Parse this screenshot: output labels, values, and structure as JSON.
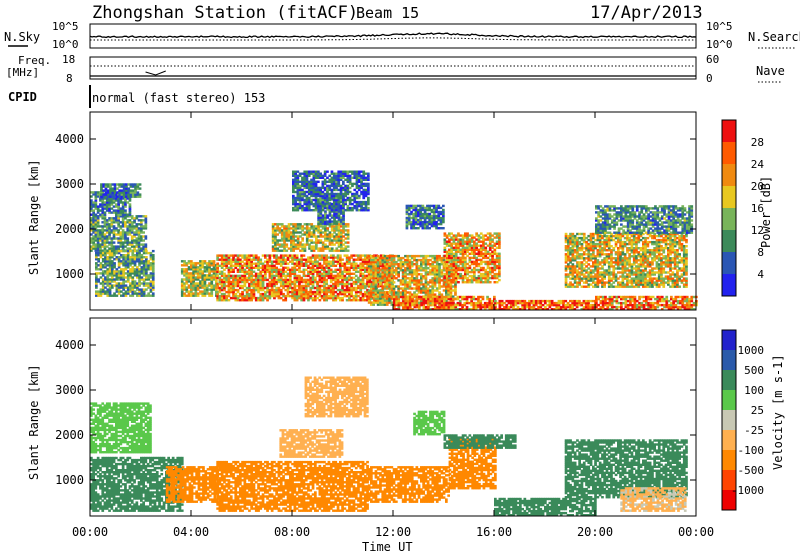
{
  "header": {
    "station": "Zhongshan Station (fitACF)",
    "beam": "Beam 15",
    "date": "17/Apr/2013"
  },
  "top_panels": {
    "nsky_label": "N.Sky",
    "nsky_ticks": [
      "10^5",
      "10^0"
    ],
    "nsearch_label": "N.Search",
    "nsearch_ticks": [
      "10^5",
      "10^0"
    ],
    "freq_label": "Freq.",
    "freq_unit": "[MHz]",
    "freq_ticks": [
      "18",
      "8"
    ],
    "nave_label": "Nave",
    "nave_ticks": [
      "60",
      "0"
    ],
    "cpid_label": "CPID",
    "cpid_value": "normal (fast stereo) 153"
  },
  "x_axis": {
    "label": "Time UT",
    "ticks": [
      "00:00",
      "04:00",
      "08:00",
      "12:00",
      "16:00",
      "20:00",
      "00:00"
    ]
  },
  "colors": {
    "power": [
      "#2222ee",
      "#2a56b4",
      "#3c8a5a",
      "#78b45a",
      "#e8c820",
      "#f08a10",
      "#ff5a00",
      "#ee1010"
    ],
    "velocity": [
      "#ee0000",
      "#ff4400",
      "#ff8800",
      "#ffb050",
      "#c8c8b4",
      "#5ac84a",
      "#3a8a5a",
      "#2a5aaa",
      "#2222cc"
    ]
  },
  "chart_data": [
    {
      "type": "heatmap",
      "name": "power",
      "ylabel": "Slant Range [km]",
      "yticks": [
        "1000",
        "2000",
        "3000",
        "4000"
      ],
      "ylim": [
        200,
        4600
      ],
      "xlim": [
        0,
        24
      ],
      "colorbar": {
        "label": "Power [dB]",
        "ticks": [
          "4",
          "8",
          "12",
          "16",
          "20",
          "24",
          "28"
        ],
        "range": [
          0,
          32
        ]
      },
      "regions": [
        {
          "t": [
            0.0,
            2.2
          ],
          "r": [
            1500,
            2300
          ],
          "v": 11
        },
        {
          "t": [
            0.0,
            1.6
          ],
          "r": [
            2300,
            2800
          ],
          "v": 9
        },
        {
          "t": [
            0.2,
            2.5
          ],
          "r": [
            500,
            1500
          ],
          "v": 12
        },
        {
          "t": [
            0.4,
            2.0
          ],
          "r": [
            2700,
            3000
          ],
          "v": 8
        },
        {
          "t": [
            3.6,
            5.0
          ],
          "r": [
            500,
            1300
          ],
          "v": 16
        },
        {
          "t": [
            5.0,
            12.0
          ],
          "r": [
            400,
            1400
          ],
          "v": 22
        },
        {
          "t": [
            7.2,
            10.2
          ],
          "r": [
            1500,
            2100
          ],
          "v": 17
        },
        {
          "t": [
            9.0,
            10.0
          ],
          "r": [
            2100,
            2700
          ],
          "v": 9
        },
        {
          "t": [
            8.0,
            11.0
          ],
          "r": [
            2400,
            3300
          ],
          "v": 7
        },
        {
          "t": [
            11.0,
            14.5
          ],
          "r": [
            300,
            1400
          ],
          "v": 19
        },
        {
          "t": [
            12.5,
            14.0
          ],
          "r": [
            2000,
            2500
          ],
          "v": 8
        },
        {
          "t": [
            14.0,
            16.2
          ],
          "r": [
            800,
            1900
          ],
          "v": 21
        },
        {
          "t": [
            12.0,
            16.0
          ],
          "r": [
            200,
            500
          ],
          "v": 25
        },
        {
          "t": [
            16.0,
            20.0
          ],
          "r": [
            200,
            400
          ],
          "v": 26
        },
        {
          "t": [
            20.0,
            24.0
          ],
          "r": [
            200,
            500
          ],
          "v": 24
        },
        {
          "t": [
            18.8,
            23.6
          ],
          "r": [
            700,
            1900
          ],
          "v": 18
        },
        {
          "t": [
            20.0,
            23.8
          ],
          "r": [
            1900,
            2500
          ],
          "v": 10
        }
      ]
    },
    {
      "type": "heatmap",
      "name": "velocity",
      "ylabel": "Slant Range [km]",
      "yticks": [
        "1000",
        "2000",
        "3000",
        "4000"
      ],
      "ylim": [
        200,
        4600
      ],
      "xlim": [
        0,
        24
      ],
      "colorbar": {
        "label": "Velocity [m s-1]",
        "ticks": [
          "-1000",
          "-500",
          "-100",
          "-25",
          "25",
          "100",
          "500",
          "1000"
        ]
      },
      "regions": [
        {
          "t": [
            0.0,
            2.4
          ],
          "r": [
            1600,
            2700
          ],
          "v": 50
        },
        {
          "t": [
            0.0,
            3.6
          ],
          "r": [
            300,
            1500
          ],
          "v": 200
        },
        {
          "t": [
            3.0,
            5.0
          ],
          "r": [
            500,
            1300
          ],
          "v": -150
        },
        {
          "t": [
            5.0,
            11.0
          ],
          "r": [
            300,
            1400
          ],
          "v": -250
        },
        {
          "t": [
            7.5,
            10.0
          ],
          "r": [
            1500,
            2100
          ],
          "v": -60
        },
        {
          "t": [
            8.5,
            11.0
          ],
          "r": [
            2400,
            3300
          ],
          "v": -40
        },
        {
          "t": [
            11.0,
            14.2
          ],
          "r": [
            500,
            1300
          ],
          "v": -300
        },
        {
          "t": [
            12.8,
            14.0
          ],
          "r": [
            2000,
            2500
          ],
          "v": 60
        },
        {
          "t": [
            14.2,
            16.0
          ],
          "r": [
            800,
            1900
          ],
          "v": -200
        },
        {
          "t": [
            14.0,
            16.8
          ],
          "r": [
            1700,
            2000
          ],
          "v": 150
        },
        {
          "t": [
            16.0,
            20.0
          ],
          "r": [
            200,
            600
          ],
          "v": 150
        },
        {
          "t": [
            18.8,
            23.6
          ],
          "r": [
            600,
            1900
          ],
          "v": 300
        },
        {
          "t": [
            21.0,
            23.6
          ],
          "r": [
            300,
            800
          ],
          "v": -30
        }
      ]
    }
  ]
}
